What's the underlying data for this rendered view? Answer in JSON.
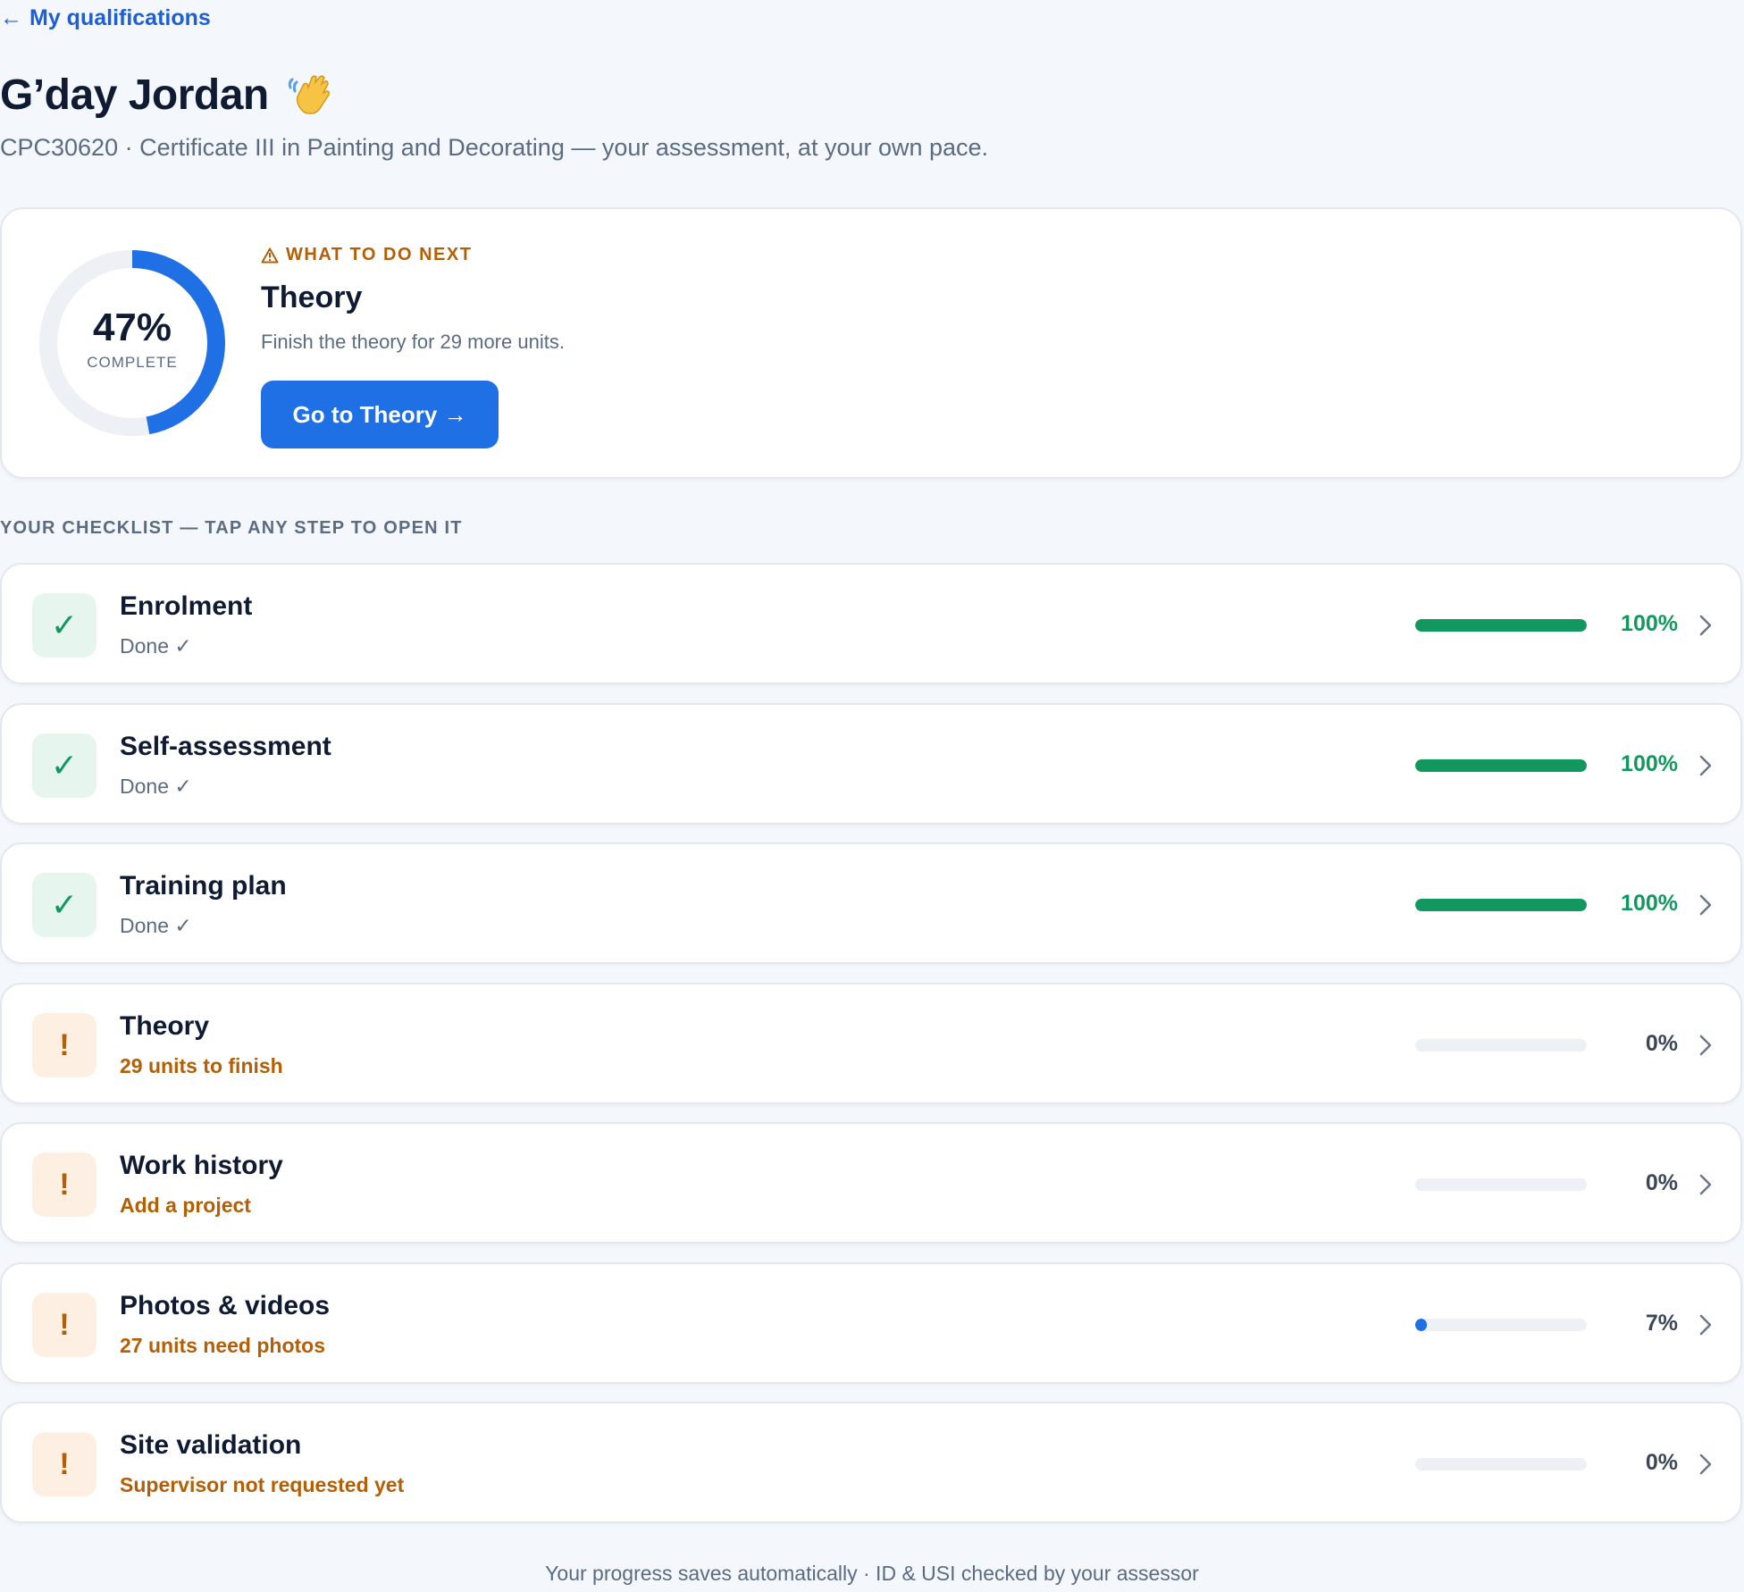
{
  "nav": {
    "back_label": "My qualifications"
  },
  "header": {
    "greeting": "G’day Jordan",
    "subtitle": "CPC30620 · Certificate III in Painting and Decorating — your assessment, at your own pace."
  },
  "next_card": {
    "progress_percent": 47,
    "progress_label": "47%",
    "progress_caption": "COMPLETE",
    "eyebrow": "WHAT TO DO NEXT",
    "title": "Theory",
    "description": "Finish the theory for 29 more units.",
    "button_label": "Go to Theory →"
  },
  "checklist": {
    "heading": "YOUR CHECKLIST — TAP ANY STEP TO OPEN IT",
    "steps": [
      {
        "title": "Enrolment",
        "status": "Done ✓",
        "state": "done",
        "percent": 100,
        "percent_label": "100%"
      },
      {
        "title": "Self-assessment",
        "status": "Done ✓",
        "state": "done",
        "percent": 100,
        "percent_label": "100%"
      },
      {
        "title": "Training plan",
        "status": "Done ✓",
        "state": "done",
        "percent": 100,
        "percent_label": "100%"
      },
      {
        "title": "Theory",
        "status": "29 units to finish",
        "state": "todo",
        "percent": 0,
        "percent_label": "0%"
      },
      {
        "title": "Work history",
        "status": "Add a project",
        "state": "todo",
        "percent": 0,
        "percent_label": "0%"
      },
      {
        "title": "Photos & videos",
        "status": "27 units need photos",
        "state": "todo",
        "percent": 7,
        "percent_label": "7%"
      },
      {
        "title": "Site validation",
        "status": "Supervisor not requested yet",
        "state": "todo",
        "percent": 0,
        "percent_label": "0%"
      }
    ]
  },
  "footer": {
    "note": "Your progress saves automatically · ID & USI checked by your assessor"
  },
  "colors": {
    "accent": "#1f6fe5",
    "done": "#12985f",
    "warning": "#b45f06",
    "background": "#f4f7fb"
  },
  "icons": {
    "back": "arrow-left-icon",
    "wave": "waving-hand-icon",
    "warning": "warning-triangle-icon",
    "done": "check-icon",
    "todo": "exclamation-icon",
    "row_action": "chevron-right-icon"
  }
}
